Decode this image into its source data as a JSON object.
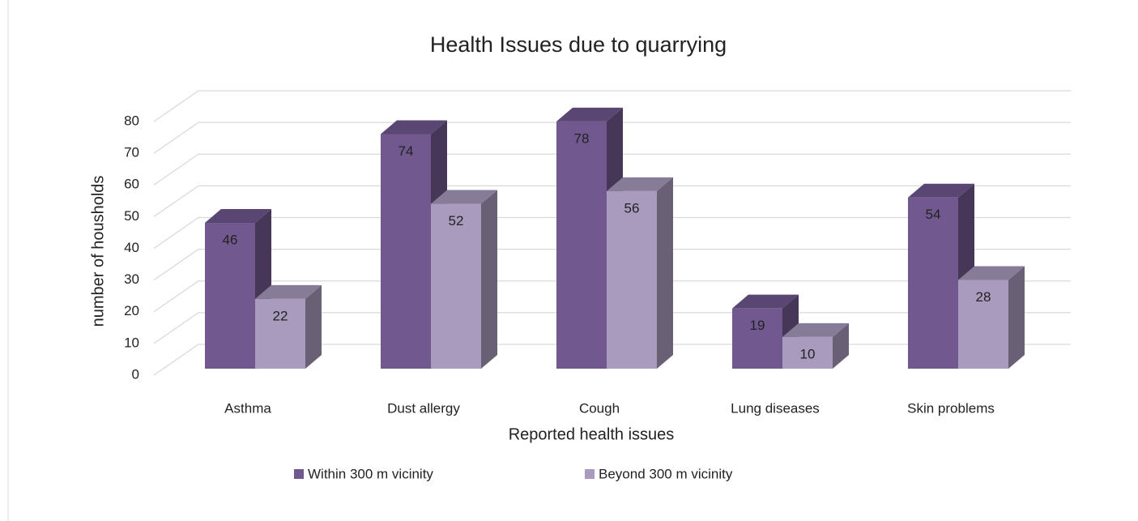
{
  "chart_data": {
    "type": "bar3d",
    "title": "Health Issues due to quarrying",
    "x_label": "Reported health issues",
    "y_label": "number of housholds",
    "categories": [
      "Asthma",
      "Dust allergy",
      "Cough",
      "Lung diseases",
      "Skin problems"
    ],
    "series": [
      {
        "name": "Within 300 m vicinity",
        "color": "#71588f",
        "values": [
          46,
          74,
          78,
          19,
          54
        ]
      },
      {
        "name": "Beyond 300 m vicinity",
        "color": "#a99bbd",
        "values": [
          22,
          52,
          56,
          10,
          28
        ]
      }
    ],
    "ylim": [
      0,
      80
    ],
    "yticks": [
      0,
      10,
      20,
      30,
      40,
      50,
      60,
      70,
      80
    ],
    "grid": true,
    "legend": "bottom"
  }
}
